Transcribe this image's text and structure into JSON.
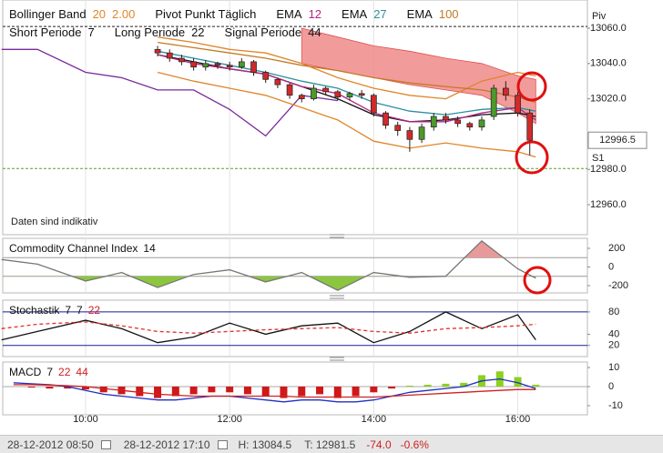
{
  "legend_rows": [
    [
      {
        "label": "Bollinger Band",
        "params": [
          20,
          "2.00"
        ],
        "color": "#e0852a"
      },
      {
        "label": "Pivot Punkt Täglich"
      },
      {
        "label": "EMA",
        "params": [
          12
        ],
        "color": "#b5238a"
      },
      {
        "label": "EMA",
        "params": [
          27
        ],
        "color": "#2a8f9c"
      },
      {
        "label": "EMA",
        "params": [
          100
        ],
        "color": "#c27a22"
      }
    ],
    [
      {
        "label": "Short Periode",
        "params": [
          7
        ]
      },
      {
        "label": "Long Periode",
        "params": [
          22
        ]
      },
      {
        "label": "Signal Periode",
        "params": [
          44
        ]
      }
    ]
  ],
  "chart_data": [
    {
      "type": "candlestick",
      "note": "Daten sind indikativ",
      "xlim": [
        531,
        1018
      ],
      "ylim": [
        12943,
        13076
      ],
      "yticks": [
        {
          "value": 13060,
          "label": "13060.0"
        },
        {
          "value": 13040,
          "label": "13040.0"
        },
        {
          "value": 13020,
          "label": "13020.0"
        },
        {
          "value": 12980,
          "label": "12980.0"
        },
        {
          "value": 12960,
          "label": "12960.0"
        }
      ],
      "x": [
        660,
        670,
        680,
        690,
        700,
        710,
        720,
        730,
        740,
        750,
        760,
        770,
        780,
        790,
        800,
        810,
        820,
        830,
        840,
        850,
        860,
        870,
        880,
        890,
        900,
        910,
        920,
        930,
        940,
        950,
        960,
        970
      ],
      "open": [
        13048,
        13046,
        13043,
        13041,
        13038,
        13040,
        13039,
        13038,
        13041,
        13035,
        13031,
        13028,
        13022,
        13020,
        13026,
        13024,
        13021,
        13023,
        13022,
        13012,
        13005,
        13002,
        12997,
        13004,
        13010,
        13008,
        13006,
        13004,
        13010,
        13026,
        13022,
        13012
      ],
      "high": [
        13050,
        13048,
        13045,
        13043,
        13042,
        13041,
        13041,
        13043,
        13042,
        13036,
        13032,
        13029,
        13023,
        13028,
        13027,
        13025,
        13024,
        13025,
        13023,
        13013,
        13007,
        13004,
        13006,
        13012,
        13012,
        13010,
        13007,
        13010,
        13028,
        13030,
        13024,
        13014
      ],
      "low": [
        13044,
        13041,
        13039,
        13036,
        13036,
        13037,
        13036,
        13037,
        13033,
        13029,
        13026,
        13020,
        13018,
        13019,
        13022,
        13019,
        13019,
        13020,
        13010,
        13003,
        12999,
        12990,
        12995,
        13002,
        13006,
        13004,
        13002,
        13002,
        13008,
        13019,
        13010,
        12988
      ],
      "close": [
        13046,
        13043,
        13041,
        13038,
        13040,
        13039,
        13038,
        13041,
        13035,
        13031,
        13028,
        13022,
        13020,
        13026,
        13024,
        13021,
        13023,
        13022,
        13012,
        13005,
        13002,
        12997,
        13004,
        13010,
        13008,
        13006,
        13004,
        13008,
        13026,
        13022,
        13012,
        12996.5
      ],
      "up_color": "#4c9a2a",
      "down_color": "#d02a2a",
      "last_price": 12996.5,
      "pivots": [
        {
          "label": "Piv",
          "value": 13061,
          "color": "#222222"
        },
        {
          "label": "S1",
          "value": 12980.5,
          "color": "#5aa02a"
        }
      ],
      "lines": {
        "x": [
          530,
          560,
          600,
          630,
          660,
          690,
          720,
          750,
          780,
          810,
          840,
          870,
          900,
          930,
          960,
          975
        ],
        "cloud": {
          "color": "#f08a8a",
          "upper": [
            null,
            null,
            null,
            null,
            null,
            null,
            null,
            null,
            13060,
            13055,
            13050,
            13047,
            13043,
            13040,
            13033,
            13031
          ],
          "lower": [
            null,
            null,
            null,
            null,
            null,
            null,
            null,
            null,
            13040,
            13036,
            13032,
            13028,
            13025,
            13022,
            13012,
            13006
          ]
        },
        "series": [
          {
            "color": "#7a2a9a",
            "values": [
              13048,
              13048,
              13035,
              13032,
              13025,
              13025,
              13014,
              12999,
              13022,
              13019,
              null,
              null,
              null,
              null,
              null,
              null
            ]
          },
          {
            "color": "#e0852a",
            "values": [
              null,
              null,
              null,
              null,
              13055,
              13052,
              13048,
              13046,
              13040,
              13032,
              13026,
              13022,
              13020,
              13030,
              13035,
              13033
            ]
          },
          {
            "color": "#e0852a",
            "values": [
              null,
              null,
              null,
              null,
              13035,
              13030,
              13026,
              13022,
              13015,
              13008,
              12996,
              12992,
              12995,
              12992,
              12990,
              12987
            ]
          },
          {
            "color": "#111111",
            "values": [
              null,
              null,
              null,
              null,
              13045,
              13041,
              13037,
              13034,
              13027,
              13020,
              13011,
              13007,
              13008,
              13011,
              13012,
              13010
            ]
          },
          {
            "color": "#c27a22",
            "values": [
              null,
              null,
              null,
              null,
              13052,
              13049,
              13046,
              13043,
              13039,
              13036,
              13032,
              13029,
              13027,
              13025,
              13021,
              13018
            ]
          },
          {
            "color": "#2a8f9c",
            "values": [
              null,
              null,
              null,
              null,
              13047,
              13043,
              13039,
              13035,
              13030,
              13026,
              13018,
              13013,
              13011,
              13014,
              13015,
              13013
            ]
          },
          {
            "color": "#b5238a",
            "values": [
              null,
              null,
              null,
              null,
              13045,
              13040,
              13037,
              13034,
              13027,
              13023,
              13012,
              13007,
              13007,
              13012,
              13015,
              13008
            ]
          }
        ]
      }
    },
    {
      "type": "line",
      "title": "Commodity Channel Index",
      "params": [
        14
      ],
      "param_colors": [
        "#111111"
      ],
      "xlim": [
        531,
        1018
      ],
      "ylim": [
        -278,
        307
      ],
      "yticks": [
        200,
        0,
        -200
      ],
      "levels": [
        100,
        -100
      ],
      "level_color": "#999999",
      "fill_colors": [
        "#e89a9a",
        "#8cc63f"
      ],
      "x": [
        530,
        560,
        600,
        630,
        660,
        690,
        720,
        750,
        780,
        810,
        840,
        870,
        900,
        930,
        960,
        975
      ],
      "series": [
        {
          "color": "#777777",
          "values": [
            80,
            30,
            -150,
            -60,
            -220,
            -80,
            -30,
            -160,
            -60,
            -250,
            -60,
            -110,
            -100,
            280,
            -20,
            -120
          ]
        }
      ]
    },
    {
      "type": "line",
      "title": "Stochastik",
      "params": [
        7,
        7,
        22
      ],
      "param_colors": [
        "#111111",
        "#111111",
        "#d02020"
      ],
      "xlim": [
        531,
        1018
      ],
      "ylim": [
        0,
        101
      ],
      "yticks": [
        80,
        40,
        20
      ],
      "levels": [
        80,
        20
      ],
      "level_color": "#1a1a9a",
      "x": [
        530,
        560,
        600,
        630,
        660,
        690,
        720,
        750,
        780,
        810,
        840,
        870,
        900,
        930,
        960,
        975
      ],
      "series": [
        {
          "color": "#111111",
          "values": [
            30,
            45,
            65,
            50,
            25,
            35,
            60,
            40,
            55,
            60,
            25,
            45,
            80,
            50,
            75,
            30
          ]
        },
        {
          "color": "#e03030",
          "dash": true,
          "values": [
            50,
            58,
            62,
            55,
            45,
            42,
            45,
            48,
            50,
            52,
            45,
            42,
            50,
            52,
            55,
            58
          ]
        }
      ]
    },
    {
      "type": "bar",
      "title": "MACD",
      "params": [
        7,
        22,
        44
      ],
      "param_colors": [
        "#111111",
        "#d02020",
        "#d02020"
      ],
      "xlim": [
        531,
        1018
      ],
      "ylim": [
        -14.8,
        12.9
      ],
      "yticks": [
        10,
        0,
        -10
      ],
      "levels": [
        0
      ],
      "level_color": "#aaaaaa",
      "xticks": [
        {
          "value": 600,
          "label": "10:00"
        },
        {
          "value": 720,
          "label": "12:00"
        },
        {
          "value": 840,
          "label": "14:00"
        },
        {
          "value": 960,
          "label": "16:00"
        }
      ],
      "x": [
        540,
        555,
        570,
        585,
        600,
        615,
        630,
        645,
        660,
        675,
        690,
        705,
        720,
        735,
        750,
        765,
        780,
        795,
        810,
        825,
        840,
        855,
        870,
        885,
        900,
        915,
        930,
        945,
        960,
        975
      ],
      "values": [
        0,
        -0.5,
        -1,
        -1,
        -1.5,
        -3,
        -4,
        -5,
        -6,
        -5,
        -4,
        -3,
        -3,
        -4,
        -5,
        -6,
        -5,
        -4,
        -6,
        -5,
        -3,
        -1,
        0.5,
        1,
        1.5,
        2,
        6,
        8,
        5,
        1
      ],
      "up_color": "#8cd020",
      "down_color": "#d01818",
      "series": [
        {
          "color": "#2030c0",
          "values": [
            2,
            1.5,
            1,
            0,
            -2,
            -4,
            -5,
            -6,
            -7,
            -7,
            -6,
            -5,
            -5,
            -6,
            -7,
            -8,
            -7,
            -7,
            -8,
            -8,
            -7,
            -5,
            -3,
            -2,
            -1,
            0,
            3,
            4,
            2,
            -1
          ]
        },
        {
          "color": "#d02020",
          "values": [
            1,
            1,
            0.8,
            0.5,
            0,
            -1,
            -2,
            -3,
            -4,
            -4.5,
            -5,
            -5,
            -5,
            -5,
            -5,
            -5,
            -5.5,
            -5.5,
            -5.5,
            -5.5,
            -5.5,
            -5,
            -4.5,
            -4,
            -3.5,
            -3,
            -2.5,
            -2,
            -1.5,
            -1.5
          ]
        }
      ]
    }
  ],
  "footer": {
    "from": "28-12-2012 08:50",
    "to": "28-12-2012 17:10",
    "high": "H: 13084.5",
    "low": "T: 12981.5",
    "change": "-74.0",
    "change_pct": "-0.6%"
  }
}
